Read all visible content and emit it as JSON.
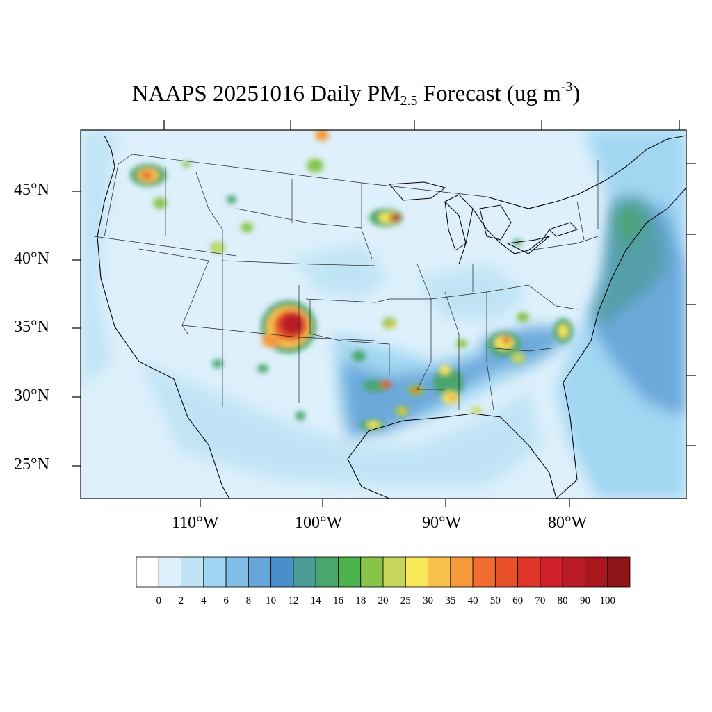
{
  "title": {
    "main": "NAAPS 20251016 Daily PM",
    "sub": "2.5",
    "after": " Forecast (ug m",
    "sup": "-3",
    "close": ")"
  },
  "lat_labels": [
    "45°N",
    "40°N",
    "35°N",
    "30°N",
    "25°N"
  ],
  "lon_labels": [
    "110°W",
    "100°W",
    "90°W",
    "80°W"
  ],
  "colorbar": {
    "labels": [
      "0",
      "2",
      "4",
      "6",
      "8",
      "10",
      "12",
      "14",
      "16",
      "18",
      "20",
      "25",
      "30",
      "35",
      "40",
      "50",
      "60",
      "70",
      "80",
      "90",
      "100"
    ],
    "colors": [
      "#ffffff",
      "#ddf0fb",
      "#bfe4f6",
      "#9fd6f2",
      "#7fbde6",
      "#66a6da",
      "#4a8ecb",
      "#4a9a96",
      "#4aa66e",
      "#4ab44a",
      "#86c44a",
      "#c5d65a",
      "#f7e85a",
      "#f8c24a",
      "#f69a3c",
      "#f26c30",
      "#e8502c",
      "#de3528",
      "#cf1f2a",
      "#b81a26",
      "#a8161e",
      "#8f1418"
    ]
  },
  "map": {
    "ocean_color": "#ddf0fb",
    "land_color": "#ddf0fb",
    "hotspots": [
      {
        "name": "Colorado-New Mexico plume",
        "lat": 35.5,
        "lon": -103,
        "level": 21
      },
      {
        "name": "Minnesota source",
        "lat": 43.3,
        "lon": -93.8,
        "level": 19
      },
      {
        "name": "Washington source",
        "lat": 46.3,
        "lon": -114,
        "level": 16
      },
      {
        "name": "Atlanta region",
        "lat": 34.0,
        "lon": -85.8,
        "level": 15
      }
    ]
  }
}
